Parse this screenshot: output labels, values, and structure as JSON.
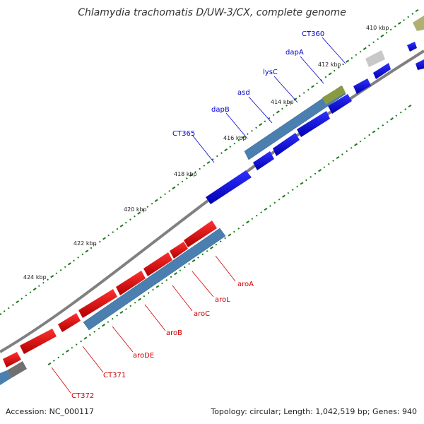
{
  "title": "Chlamydia trachomatis D/UW-3/CX, complete genome",
  "footer": {
    "accession": "Accession: NC_000117",
    "summary": "Topology: circular; Length: 1,042,519 bp; Genes: 940"
  },
  "ticks": [
    "410 kbp",
    "412 kbp",
    "414 kbp",
    "416 kbp",
    "418 kbp",
    "420 kbp",
    "422 kbp",
    "424 kbp"
  ],
  "genes_forward": [
    {
      "label": "CT360",
      "color": "#0000cc"
    },
    {
      "label": "dapA",
      "color": "#0000cc"
    },
    {
      "label": "lysC",
      "color": "#0000cc"
    },
    {
      "label": "asd",
      "color": "#0000cc"
    },
    {
      "label": "dapB",
      "color": "#0000cc"
    },
    {
      "label": "CT365",
      "color": "#0000cc"
    }
  ],
  "genes_reverse": [
    {
      "label": "aroA",
      "color": "#cc0000"
    },
    {
      "label": "aroL",
      "color": "#cc0000"
    },
    {
      "label": "aroC",
      "color": "#cc0000"
    },
    {
      "label": "aroB",
      "color": "#cc0000"
    },
    {
      "label": "aroDE",
      "color": "#cc0000"
    },
    {
      "label": "CT371",
      "color": "#cc0000"
    },
    {
      "label": "CT372",
      "color": "#cc0000"
    }
  ],
  "colors": {
    "forward_cds": "#0000ee",
    "reverse_cds": "#ee0000",
    "merged_block": "#4a7fb0",
    "backbone": "#777777",
    "tick": "#1a7a1a",
    "other_feature": "#a0a080"
  }
}
